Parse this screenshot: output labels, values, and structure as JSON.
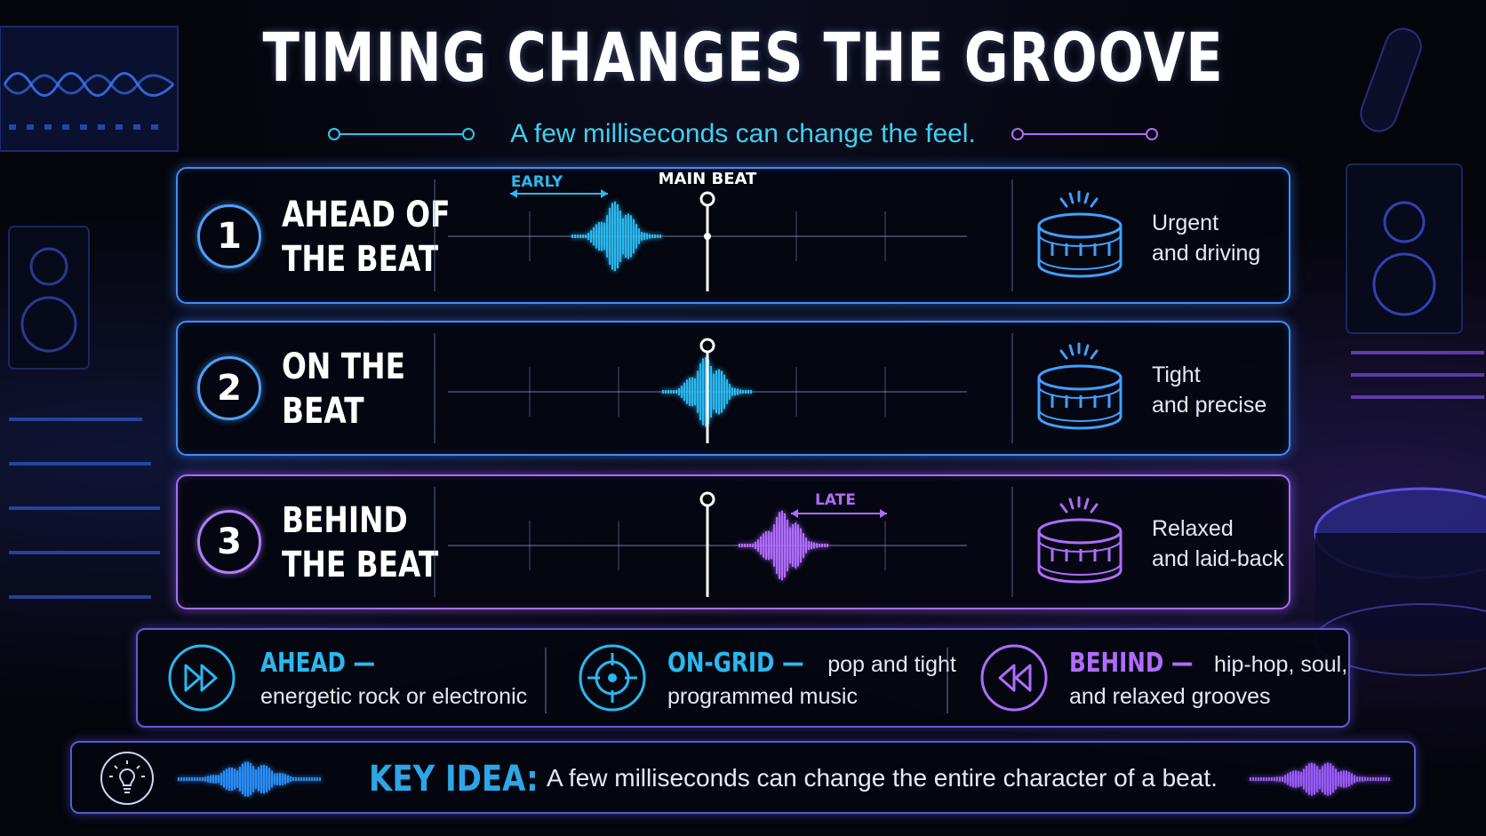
{
  "title": "TIMING CHANGES THE GROOVE",
  "subtitle": "A few milliseconds can change the feel.",
  "rows": [
    {
      "number": "1",
      "label_line1": "AHEAD OF",
      "label_line2": "THE BEAT",
      "feel_line1": "Urgent",
      "feel_line2": "and driving",
      "color": "#3f8cff",
      "timing": "early"
    },
    {
      "number": "2",
      "label_line1": "ON THE",
      "label_line2": "BEAT",
      "feel_line1": "Tight",
      "feel_line2": "and precise",
      "color": "#3f8cff",
      "timing": "on"
    },
    {
      "number": "3",
      "label_line1": "BEHIND",
      "label_line2": "THE BEAT",
      "feel_line1": "Relaxed",
      "feel_line2": "and laid-back",
      "color": "#a86cff",
      "timing": "late"
    }
  ],
  "markers": {
    "early": "EARLY",
    "main_beat": "MAIN BEAT",
    "late": "LATE"
  },
  "legend": [
    {
      "head": "AHEAD —",
      "text_line1": "",
      "text_line2": "energetic rock or electronic",
      "icon": "fast-forward-icon",
      "color": "#2ab8f0"
    },
    {
      "head": "ON-GRID —",
      "text_line1": "pop and tight",
      "text_line2": "programmed music",
      "icon": "crosshair-icon",
      "color": "#2ab8f0"
    },
    {
      "head": "BEHIND —",
      "text_line1": "hip-hop, soul,",
      "text_line2": "and relaxed grooves",
      "icon": "rewind-icon",
      "color": "#b06cff"
    }
  ],
  "key_idea": {
    "label": "KEY IDEA:",
    "text": "A few milliseconds can change the entire character of a beat.",
    "icon": "lightbulb-icon"
  }
}
